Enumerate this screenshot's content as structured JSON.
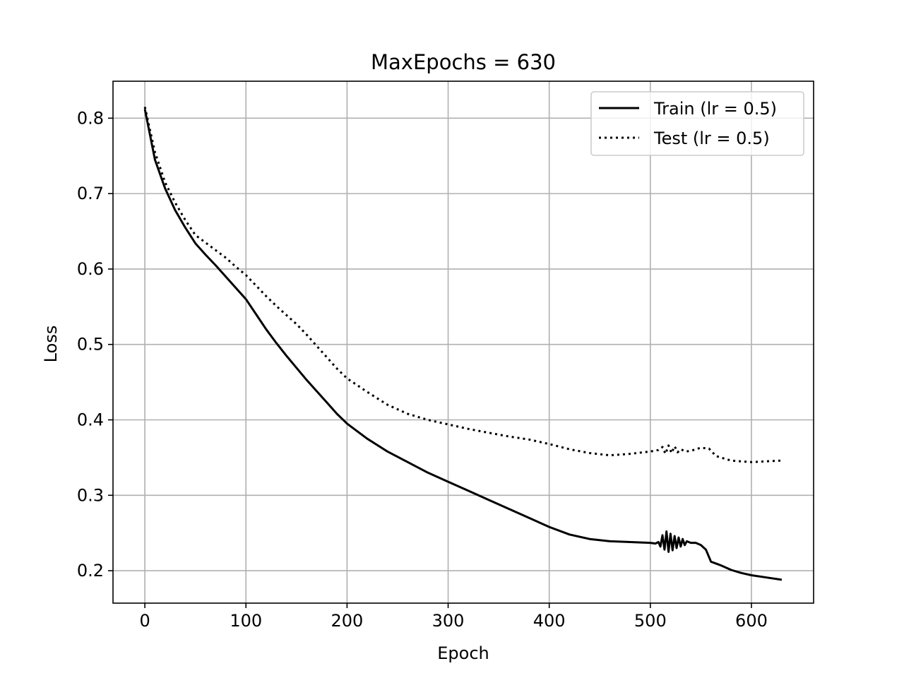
{
  "chart_data": {
    "type": "line",
    "title": "MaxEpochs = 630",
    "xlabel": "Epoch",
    "ylabel": "Loss",
    "xlim": [
      -31.5,
      661.5
    ],
    "ylim": [
      0.157,
      0.849
    ],
    "xticks": [
      0,
      100,
      200,
      300,
      400,
      500,
      600
    ],
    "yticks": [
      0.2,
      0.3,
      0.4,
      0.5,
      0.6,
      0.7,
      0.8
    ],
    "xtick_labels": [
      "0",
      "100",
      "200",
      "300",
      "400",
      "500",
      "600"
    ],
    "ytick_labels": [
      "0.2",
      "0.3",
      "0.4",
      "0.5",
      "0.6",
      "0.7",
      "0.8"
    ],
    "grid": true,
    "legend_position": "top-right",
    "series": [
      {
        "name": "Train (lr = 0.5)",
        "style": "solid",
        "color": "#000000",
        "x": [
          0,
          10,
          20,
          30,
          40,
          50,
          60,
          70,
          80,
          90,
          100,
          110,
          120,
          130,
          140,
          150,
          160,
          170,
          180,
          190,
          200,
          220,
          240,
          260,
          280,
          300,
          320,
          340,
          360,
          380,
          400,
          420,
          440,
          460,
          480,
          500,
          505,
          508,
          510,
          512,
          514,
          516,
          518,
          520,
          522,
          524,
          526,
          528,
          530,
          532,
          534,
          536,
          540,
          545,
          550,
          555,
          560,
          570,
          580,
          590,
          600,
          615,
          630
        ],
        "y": [
          0.812,
          0.745,
          0.707,
          0.678,
          0.655,
          0.634,
          0.619,
          0.605,
          0.59,
          0.575,
          0.56,
          0.54,
          0.52,
          0.502,
          0.485,
          0.469,
          0.453,
          0.438,
          0.423,
          0.408,
          0.395,
          0.375,
          0.358,
          0.344,
          0.33,
          0.318,
          0.306,
          0.294,
          0.282,
          0.27,
          0.258,
          0.248,
          0.242,
          0.239,
          0.238,
          0.237,
          0.236,
          0.238,
          0.232,
          0.247,
          0.228,
          0.252,
          0.225,
          0.249,
          0.227,
          0.246,
          0.23,
          0.244,
          0.232,
          0.242,
          0.234,
          0.239,
          0.237,
          0.237,
          0.234,
          0.228,
          0.212,
          0.207,
          0.201,
          0.197,
          0.194,
          0.191,
          0.188
        ]
      },
      {
        "name": "Test (lr = 0.5)",
        "style": "dotted",
        "color": "#000000",
        "x": [
          0,
          10,
          20,
          30,
          40,
          50,
          60,
          70,
          80,
          90,
          100,
          110,
          120,
          130,
          140,
          150,
          160,
          170,
          180,
          190,
          200,
          220,
          240,
          260,
          280,
          300,
          320,
          340,
          360,
          380,
          400,
          420,
          440,
          460,
          480,
          500,
          508,
          512,
          515,
          518,
          521,
          524,
          527,
          530,
          535,
          540,
          550,
          558,
          565,
          580,
          600,
          615,
          630
        ],
        "y": [
          0.815,
          0.755,
          0.715,
          0.688,
          0.665,
          0.645,
          0.635,
          0.625,
          0.615,
          0.603,
          0.592,
          0.578,
          0.564,
          0.551,
          0.539,
          0.527,
          0.513,
          0.498,
          0.483,
          0.468,
          0.455,
          0.437,
          0.42,
          0.408,
          0.4,
          0.394,
          0.388,
          0.383,
          0.378,
          0.374,
          0.368,
          0.361,
          0.356,
          0.353,
          0.355,
          0.358,
          0.36,
          0.364,
          0.355,
          0.366,
          0.356,
          0.365,
          0.357,
          0.361,
          0.358,
          0.359,
          0.363,
          0.362,
          0.352,
          0.346,
          0.344,
          0.345,
          0.346
        ]
      }
    ]
  }
}
